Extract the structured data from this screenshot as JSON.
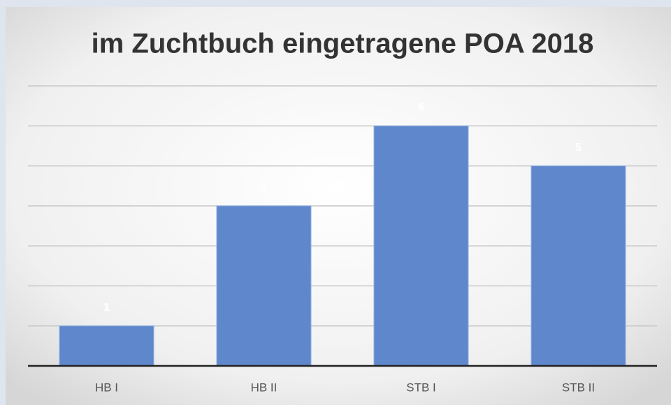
{
  "chart_data": {
    "type": "bar",
    "title": "im Zuchtbuch eingetragene POA 2018",
    "categories": [
      "HB I",
      "HB II",
      "STB I",
      "STB II"
    ],
    "values": [
      1,
      4,
      6,
      5
    ],
    "color": "#5f87cb",
    "ylim": [
      0,
      7
    ],
    "yticks": [
      0,
      1,
      2,
      3,
      4,
      5,
      6,
      7
    ],
    "grid": true
  }
}
